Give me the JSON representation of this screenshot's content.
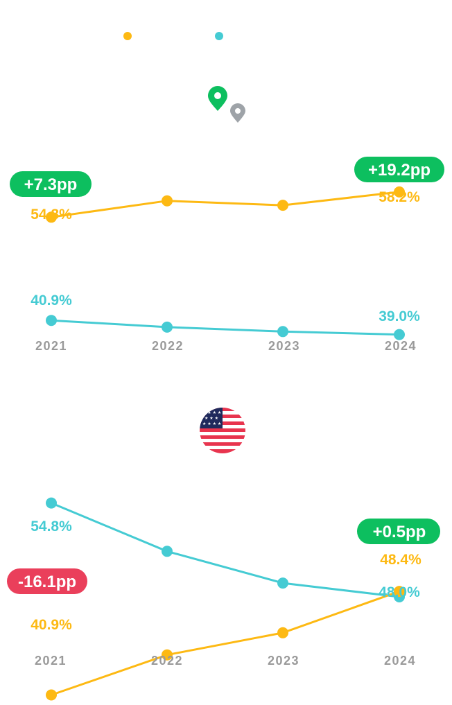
{
  "colors": {
    "series_a": "#FDB913",
    "series_b": "#45CBD3",
    "positive": "#0DBF5F",
    "negative": "#EA3F5B",
    "tick": "#9a9a9a"
  },
  "legend": [
    {
      "icon": "yellow-dot",
      "color": "#FDB913"
    },
    {
      "icon": "teal-dot",
      "color": "#45CBD3"
    }
  ],
  "chart_data": [
    {
      "type": "line",
      "icon": "map-pin-icons",
      "categories": [
        "2021",
        "2022",
        "2023",
        "2024"
      ],
      "ylim": [
        30,
        65
      ],
      "series": [
        {
          "color": "#FDB913",
          "values": [
            54.8,
            57.0,
            56.4,
            58.2
          ]
        },
        {
          "color": "#45CBD3",
          "values": [
            40.9,
            40.0,
            39.4,
            39.0
          ]
        }
      ],
      "labels": {
        "a_start": "54.8%",
        "a_end": "58.2%",
        "b_start": "40.9%",
        "b_end": "39.0%"
      },
      "badges": [
        {
          "text": "+7.3pp",
          "tone": "positive"
        },
        {
          "text": "+19.2pp",
          "tone": "positive"
        }
      ]
    },
    {
      "type": "line",
      "icon": "us-flag-icon",
      "categories": [
        "2021",
        "2022",
        "2023",
        "2024"
      ],
      "ylim": [
        35,
        60
      ],
      "series": [
        {
          "color": "#45CBD3",
          "values": [
            54.8,
            51.3,
            49.0,
            48.0
          ]
        },
        {
          "color": "#FDB913",
          "values": [
            40.9,
            43.8,
            45.4,
            48.4
          ]
        }
      ],
      "labels": {
        "b_start": "54.8%",
        "b_end": "48.0%",
        "a_start": "40.9%",
        "a_end": "48.4%"
      },
      "badges": [
        {
          "text": "-16.1pp",
          "tone": "negative"
        },
        {
          "text": "+0.5pp",
          "tone": "positive"
        }
      ]
    }
  ]
}
